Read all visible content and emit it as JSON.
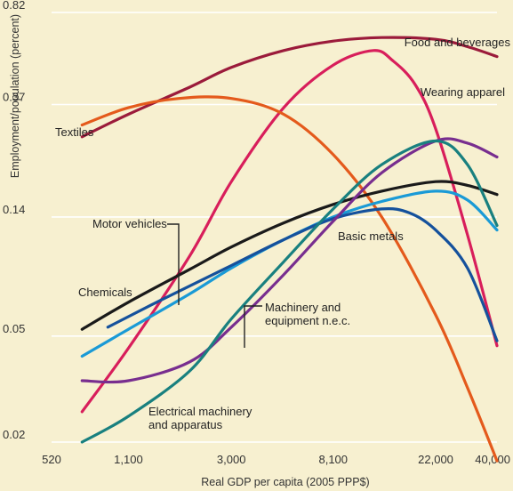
{
  "chart_data": {
    "type": "line",
    "title": "",
    "xlabel": "Real GDP per capita (2005 PPP$)",
    "ylabel": "Employment/population (percent)",
    "x_scale": "log",
    "y_scale": "log",
    "xlim": [
      520,
      40000
    ],
    "ylim": [
      0.02,
      0.82
    ],
    "x_ticks": [
      520,
      1100,
      3000,
      8100,
      22000,
      40000
    ],
    "x_tick_labels": [
      "520",
      "1,100",
      "3,000",
      "8,100",
      "22,000",
      "40,000"
    ],
    "y_ticks": [
      0.02,
      0.05,
      0.14,
      0.37,
      0.82
    ],
    "y_tick_labels": [
      "0.02",
      "0.05",
      "0.14",
      "0.37",
      "0.82"
    ],
    "grid": true,
    "legend": "none",
    "series": [
      {
        "name": "Food and beverages",
        "color": "#9b1b3b",
        "x": [
          700,
          1100,
          2000,
          3000,
          5000,
          8100,
          13000,
          22000,
          30000,
          40000
        ],
        "y": [
          0.28,
          0.34,
          0.43,
          0.51,
          0.59,
          0.64,
          0.66,
          0.65,
          0.61,
          0.56
        ]
      },
      {
        "name": "Wearing apparel",
        "color": "#d81e5b",
        "x": [
          700,
          1100,
          2000,
          3000,
          5000,
          8100,
          12000,
          14500,
          18000,
          22000,
          30000,
          40000
        ],
        "y": [
          0.026,
          0.045,
          0.1,
          0.19,
          0.36,
          0.52,
          0.59,
          0.54,
          0.44,
          0.3,
          0.12,
          0.046
        ]
      },
      {
        "name": "Textiles",
        "color": "#e45a1c",
        "x": [
          700,
          1100,
          1800,
          3000,
          5000,
          8100,
          13000,
          22000,
          30000,
          40000
        ],
        "y": [
          0.31,
          0.36,
          0.39,
          0.39,
          0.34,
          0.24,
          0.14,
          0.06,
          0.032,
          0.017
        ]
      },
      {
        "name": "Motor vehicles",
        "color": "#1a9ad6",
        "x": [
          700,
          1100,
          2000,
          3000,
          5000,
          8100,
          13000,
          22000,
          30000,
          40000
        ],
        "y": [
          0.042,
          0.053,
          0.072,
          0.09,
          0.115,
          0.14,
          0.16,
          0.175,
          0.162,
          0.125
        ]
      },
      {
        "name": "Chemicals",
        "color": "#1a1a1a",
        "x": [
          700,
          1100,
          2000,
          3000,
          5000,
          8100,
          13000,
          22000,
          30000,
          40000
        ],
        "y": [
          0.053,
          0.067,
          0.089,
          0.108,
          0.133,
          0.156,
          0.175,
          0.19,
          0.184,
          0.17
        ]
      },
      {
        "name": "Basic metals",
        "color": "#15519c",
        "x": [
          900,
          1500,
          3000,
          5000,
          8100,
          13000,
          17000,
          22000,
          30000,
          40000
        ],
        "y": [
          0.054,
          0.068,
          0.092,
          0.115,
          0.138,
          0.15,
          0.145,
          0.125,
          0.09,
          0.048
        ]
      },
      {
        "name": "Machinery and equipment n.e.c.",
        "color": "#782e8f",
        "x": [
          700,
          1100,
          2000,
          3000,
          5000,
          8100,
          13000,
          22000,
          30000,
          40000
        ],
        "y": [
          0.034,
          0.034,
          0.04,
          0.054,
          0.085,
          0.135,
          0.205,
          0.27,
          0.265,
          0.235
        ]
      },
      {
        "name": "Electrical machinery and apparatus",
        "color": "#19807f",
        "x": [
          700,
          1100,
          2000,
          3000,
          5000,
          8100,
          13000,
          22000,
          30000,
          40000
        ],
        "y": [
          0.02,
          0.025,
          0.037,
          0.058,
          0.095,
          0.15,
          0.22,
          0.27,
          0.22,
          0.13
        ]
      }
    ],
    "annotations": [
      {
        "text": "Food and beverages",
        "series": "Food and beverages"
      },
      {
        "text": "Wearing apparel",
        "series": "Wearing apparel"
      },
      {
        "text": "Textiles",
        "series": "Textiles"
      },
      {
        "text": "Motor vehicles",
        "series": "Motor vehicles"
      },
      {
        "text": "Chemicals",
        "series": "Chemicals"
      },
      {
        "text": "Basic metals",
        "series": "Basic metals"
      },
      {
        "text": "Machinery and",
        "text2": "equipment n.e.c.",
        "series": "Machinery and equipment n.e.c."
      },
      {
        "text": "Electrical machinery",
        "text2": "and apparatus",
        "series": "Electrical machinery and apparatus"
      }
    ]
  }
}
